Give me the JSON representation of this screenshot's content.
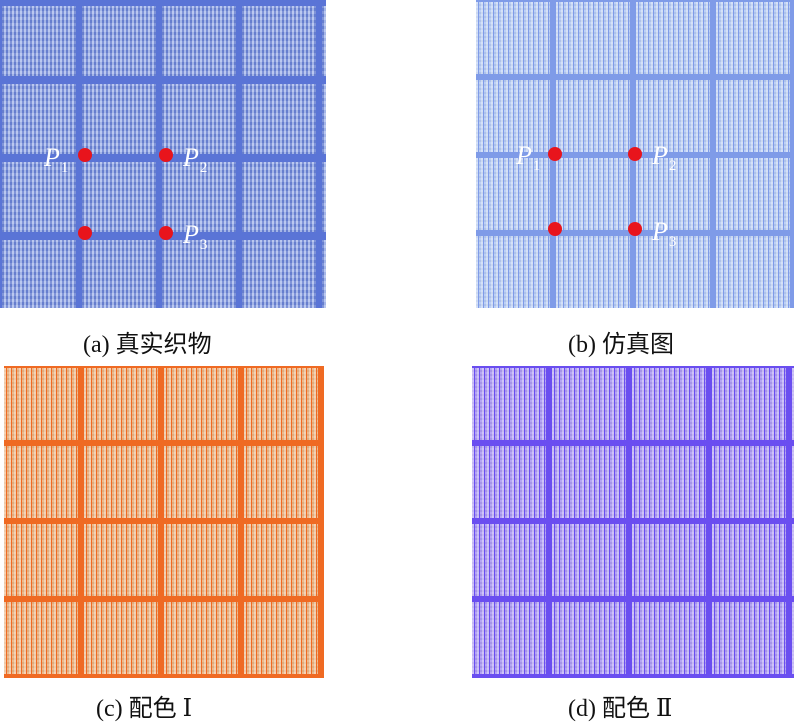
{
  "panels": [
    {
      "id": "a",
      "caption": "(a)  真实织物",
      "base_color": "#7f98e3",
      "line_color": "#5a74d6",
      "style": "photo"
    },
    {
      "id": "b",
      "caption": "(b)  仿真图",
      "base_color": "#a9c2f2",
      "line_color": "#7f9be8",
      "style": "sim"
    },
    {
      "id": "c",
      "caption": "(c)  配色 Ⅰ",
      "base_color": "#e9a56a",
      "line_color": "#ef6a23",
      "style": "sim"
    },
    {
      "id": "d",
      "caption": "(d)  配色 Ⅱ",
      "base_color": "#9d88f1",
      "line_color": "#6a4ef0",
      "style": "sim"
    }
  ],
  "points": {
    "p1": {
      "letter": "P",
      "sub": "1"
    },
    "p2": {
      "letter": "P",
      "sub": "2"
    },
    "p3": {
      "letter": "P",
      "sub": "3"
    }
  }
}
